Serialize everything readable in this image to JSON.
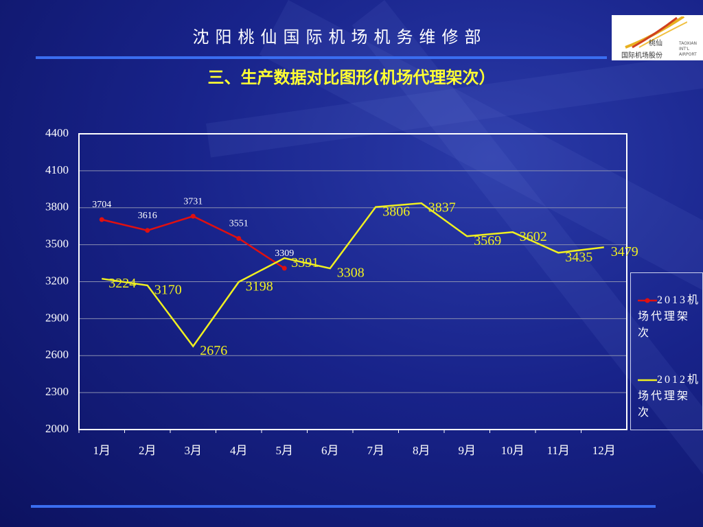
{
  "header": {
    "title": "沈阳桃仙国际机场机务维修部",
    "logo": {
      "name": "桃仙",
      "company": "国际机场股份",
      "english": [
        "TAOXIAN",
        "INT'L",
        "AIRPORT"
      ]
    }
  },
  "chart_data": {
    "type": "line",
    "title": "三、生产数据对比图形(机场代理架次）",
    "categories": [
      "1月",
      "2月",
      "3月",
      "4月",
      "5月",
      "6月",
      "7月",
      "8月",
      "9月",
      "10月",
      "11月",
      "12月"
    ],
    "series": [
      {
        "name": "2013机场代理架次",
        "color": "#e01010",
        "marker": true,
        "values": [
          3704,
          3616,
          3731,
          3551,
          3309,
          null,
          null,
          null,
          null,
          null,
          null,
          null
        ]
      },
      {
        "name": "2012机场代理架次",
        "color": "#f0f020",
        "marker": false,
        "values": [
          3224,
          3170,
          2676,
          3198,
          3391,
          3308,
          3806,
          3837,
          3569,
          3602,
          3435,
          3479
        ]
      }
    ],
    "ylim": [
      2000,
      4400
    ],
    "yticks": [
      2000,
      2300,
      2600,
      2900,
      3200,
      3500,
      3800,
      4100,
      4400
    ],
    "grid": true,
    "legend": "right"
  }
}
